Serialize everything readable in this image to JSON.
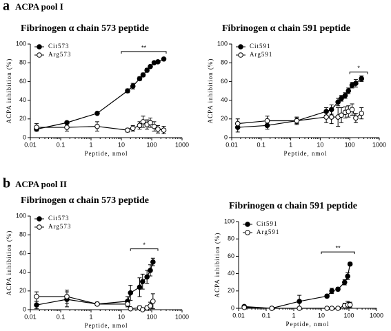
{
  "panels": [
    {
      "letter": "a",
      "label": "ACPA pool I"
    },
    {
      "letter": "b",
      "label": "ACPA pool II"
    }
  ],
  "chart_data": [
    {
      "type": "line",
      "title": "Fibrinogen α chain 573 peptide",
      "xlabel": "Peptide, nmol",
      "ylabel": "ACPA inhibition (%)",
      "xscale": "log",
      "xlim": [
        0.01,
        1000
      ],
      "xticks": [
        0.01,
        0.1,
        1,
        10,
        100,
        1000
      ],
      "ylim": [
        0,
        100
      ],
      "yticks": [
        0,
        20,
        40,
        60,
        80,
        100
      ],
      "legend": "upper left",
      "series": [
        {
          "name": "Cit573",
          "color": "#000000",
          "marker": "filled",
          "x": [
            0.016,
            0.16,
            1.6,
            16,
            24,
            40,
            52,
            70,
            90,
            120,
            160,
            250
          ],
          "values": [
            9,
            16,
            26,
            50,
            55,
            63,
            67,
            72,
            76,
            80,
            81,
            84
          ],
          "errors": [
            1,
            1,
            1,
            2,
            3,
            2,
            2,
            2,
            1,
            1,
            1,
            1
          ]
        },
        {
          "name": "Arg573",
          "color": "#000000",
          "marker": "open",
          "x": [
            0.016,
            0.16,
            1.6,
            16,
            24,
            40,
            52,
            70,
            90,
            120,
            160,
            250
          ],
          "values": [
            11,
            11,
            12,
            8,
            10,
            13,
            17,
            14,
            16,
            12,
            9,
            8
          ],
          "errors": [
            4,
            4,
            5,
            2,
            3,
            4,
            6,
            5,
            5,
            5,
            4,
            4
          ]
        }
      ],
      "annotations": [
        {
          "text": "**",
          "x": [
            10,
            300
          ],
          "y": 92
        }
      ]
    },
    {
      "type": "line",
      "title": "Fibrinogen α chain 591 peptide",
      "xlabel": "Peptide, nmol",
      "ylabel": "ACPA inhibition (%)",
      "xscale": "log",
      "xlim": [
        0.01,
        1000
      ],
      "xticks": [
        0.01,
        0.1,
        1,
        10,
        100,
        1000
      ],
      "ylim": [
        0,
        100
      ],
      "yticks": [
        0,
        20,
        40,
        60,
        80,
        100
      ],
      "legend": "upper left",
      "series": [
        {
          "name": "Cit591",
          "color": "#000000",
          "marker": "filled",
          "x": [
            0.016,
            0.16,
            1.6,
            16,
            24,
            40,
            52,
            70,
            90,
            120,
            160,
            250
          ],
          "values": [
            11,
            13,
            18,
            28,
            30,
            38,
            42,
            45,
            50,
            56,
            58,
            63
          ],
          "errors": [
            5,
            4,
            3,
            4,
            5,
            4,
            3,
            3,
            3,
            3,
            4,
            3
          ]
        },
        {
          "name": "Arg591",
          "color": "#000000",
          "marker": "open",
          "x": [
            0.016,
            0.16,
            1.6,
            16,
            24,
            40,
            52,
            70,
            90,
            120,
            160,
            250
          ],
          "values": [
            15,
            18,
            18,
            22,
            22,
            22,
            24,
            27,
            28,
            30,
            21,
            26
          ],
          "errors": [
            5,
            5,
            4,
            6,
            7,
            10,
            8,
            6,
            6,
            6,
            5,
            6
          ]
        }
      ],
      "annotations": [
        {
          "text": "*",
          "x": [
            100,
            400
          ],
          "y": 70
        }
      ]
    },
    {
      "type": "line",
      "title": "Fibrinogen α chain 573 peptide",
      "xlabel": "Peptide, nmol",
      "ylabel": "ACPA inhibition (%)",
      "xscale": "log",
      "xlim": [
        0.01,
        1000
      ],
      "xticks": [
        0.01,
        0.1,
        1,
        10,
        100,
        1000
      ],
      "ylim": [
        0,
        100
      ],
      "yticks": [
        0,
        20,
        40,
        60,
        80,
        100
      ],
      "legend": "upper left",
      "series": [
        {
          "name": "Cit573",
          "color": "#000000",
          "marker": "filled",
          "x": [
            0.016,
            0.16,
            1.6,
            16,
            20,
            40,
            50,
            70,
            90,
            110
          ],
          "values": [
            5,
            11,
            6,
            9,
            18,
            24,
            30,
            35,
            42,
            51
          ],
          "errors": [
            4,
            8,
            2,
            5,
            8,
            10,
            8,
            7,
            6,
            4
          ]
        },
        {
          "name": "Arg573",
          "color": "#000000",
          "marker": "open",
          "x": [
            0.016,
            0.16,
            1.6,
            16,
            20,
            40,
            50,
            70,
            90,
            110
          ],
          "values": [
            14,
            14,
            6,
            6,
            1,
            2,
            0,
            2,
            4,
            9
          ],
          "errors": [
            5,
            7,
            2,
            3,
            1,
            2,
            1,
            2,
            4,
            8
          ]
        }
      ],
      "annotations": [
        {
          "text": "*",
          "x": [
            20,
            160
          ],
          "y": 65
        }
      ]
    },
    {
      "type": "line",
      "title": "Fibrinogen α chain 591 peptide",
      "xlabel": "Peptide, nmol",
      "ylabel": "ACPA inhibition (%)",
      "xscale": "log",
      "xlim": [
        0.01,
        1000
      ],
      "xticks": [
        0.01,
        0.1,
        1,
        10,
        100,
        1000
      ],
      "ylim": [
        0,
        100
      ],
      "yticks": [
        0,
        20,
        40,
        60,
        80,
        100
      ],
      "legend": "upper left",
      "series": [
        {
          "name": "Cit591",
          "color": "#000000",
          "marker": "filled",
          "x": [
            0.016,
            0.16,
            1.6,
            16,
            24,
            40,
            70,
            90,
            110
          ],
          "values": [
            2,
            0,
            8,
            14,
            20,
            22,
            30,
            37,
            51
          ],
          "errors": [
            1,
            1,
            7,
            2,
            3,
            2,
            3,
            4,
            2
          ]
        },
        {
          "name": "Arg591",
          "color": "#000000",
          "marker": "open",
          "x": [
            0.016,
            0.16,
            1.6,
            16,
            24,
            40,
            70,
            90,
            110
          ],
          "values": [
            1,
            0,
            0,
            0,
            0,
            0,
            3,
            4,
            4
          ],
          "errors": [
            1,
            1,
            1,
            1,
            1,
            1,
            3,
            4,
            3
          ]
        }
      ],
      "annotations": [
        {
          "text": "**",
          "x": [
            10,
            160
          ],
          "y": 65
        }
      ]
    }
  ]
}
